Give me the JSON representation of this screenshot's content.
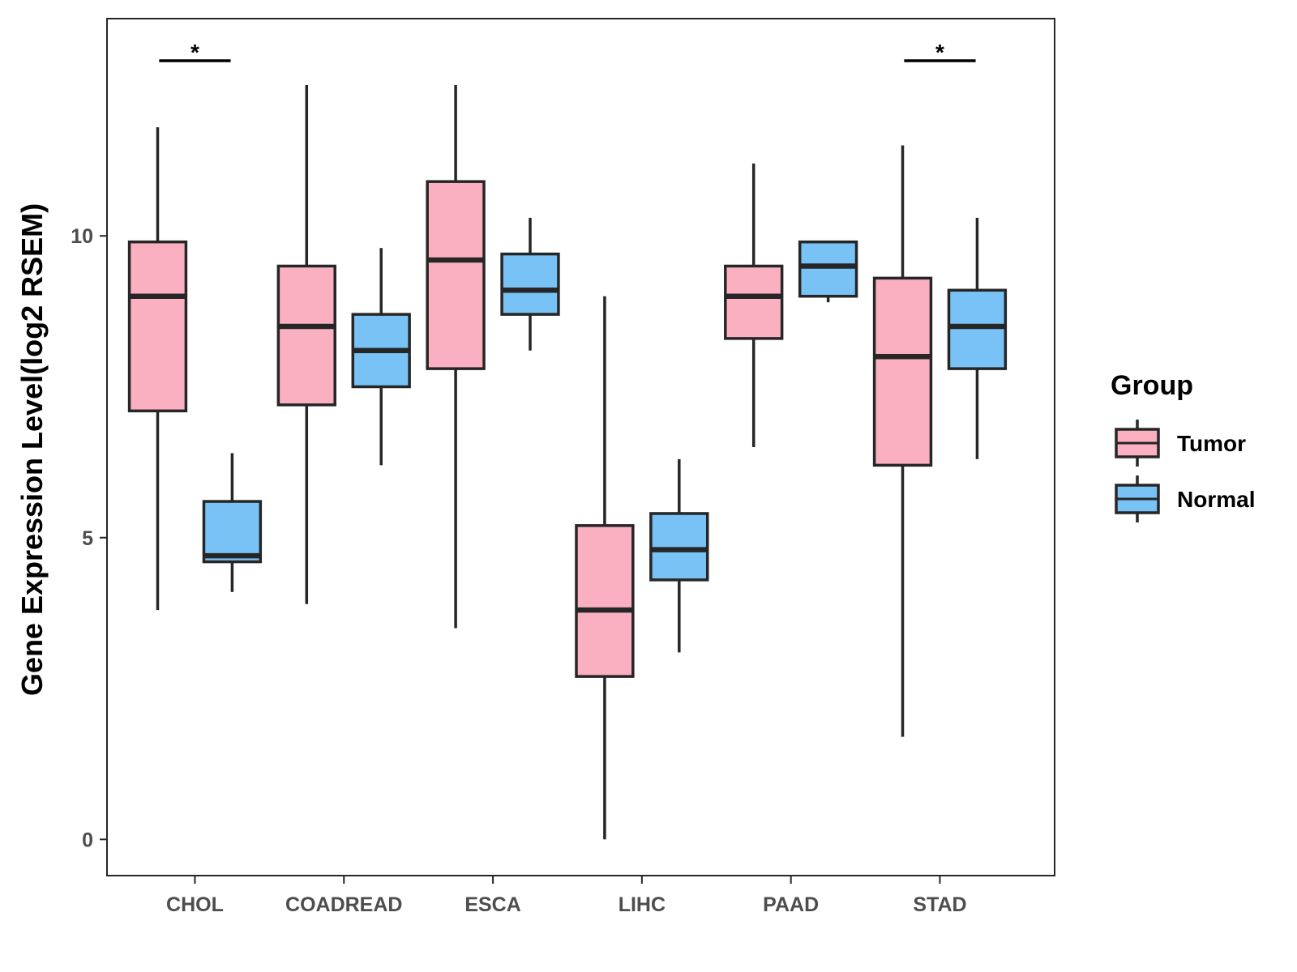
{
  "chart_data": {
    "type": "boxplot",
    "title": "",
    "xlabel": "",
    "ylabel": "Gene Expression Level(log2 RSEM)",
    "ylim": [
      -0.6,
      13.6
    ],
    "yticks": [
      0,
      5,
      10
    ],
    "grid": false,
    "legend_title": "Group",
    "legend_position": "right",
    "categories": [
      "CHOL",
      "COADREAD",
      "ESCA",
      "LIHC",
      "PAAD",
      "STAD"
    ],
    "colors": {
      "Tumor": "#fbb0c2",
      "Normal": "#78c2f6",
      "stroke": "#262626"
    },
    "series": [
      {
        "name": "Tumor",
        "boxes": [
          {
            "min": 3.8,
            "q1": 7.1,
            "median": 9.0,
            "q3": 9.9,
            "max": 11.8
          },
          {
            "min": 3.9,
            "q1": 7.2,
            "median": 8.5,
            "q3": 9.5,
            "max": 12.5
          },
          {
            "min": 3.5,
            "q1": 7.8,
            "median": 9.6,
            "q3": 10.9,
            "max": 12.5
          },
          {
            "min": 0.0,
            "q1": 2.7,
            "median": 3.8,
            "q3": 5.2,
            "max": 9.0
          },
          {
            "min": 6.5,
            "q1": 8.3,
            "median": 9.0,
            "q3": 9.5,
            "max": 11.2
          },
          {
            "min": 1.7,
            "q1": 6.2,
            "median": 8.0,
            "q3": 9.3,
            "max": 11.5
          }
        ]
      },
      {
        "name": "Normal",
        "boxes": [
          {
            "min": 4.1,
            "q1": 4.6,
            "median": 4.7,
            "q3": 5.6,
            "max": 6.4
          },
          {
            "min": 6.2,
            "q1": 7.5,
            "median": 8.1,
            "q3": 8.7,
            "max": 9.8
          },
          {
            "min": 8.1,
            "q1": 8.7,
            "median": 9.1,
            "q3": 9.7,
            "max": 10.3
          },
          {
            "min": 3.1,
            "q1": 4.3,
            "median": 4.8,
            "q3": 5.4,
            "max": 6.3
          },
          {
            "min": 8.9,
            "q1": 9.0,
            "median": 9.5,
            "q3": 9.9,
            "max": 9.9
          },
          {
            "min": 6.3,
            "q1": 7.8,
            "median": 8.5,
            "q3": 9.1,
            "max": 10.3
          }
        ]
      }
    ],
    "significance": [
      {
        "category": "CHOL",
        "label": "*"
      },
      {
        "category": "STAD",
        "label": "*"
      }
    ]
  }
}
